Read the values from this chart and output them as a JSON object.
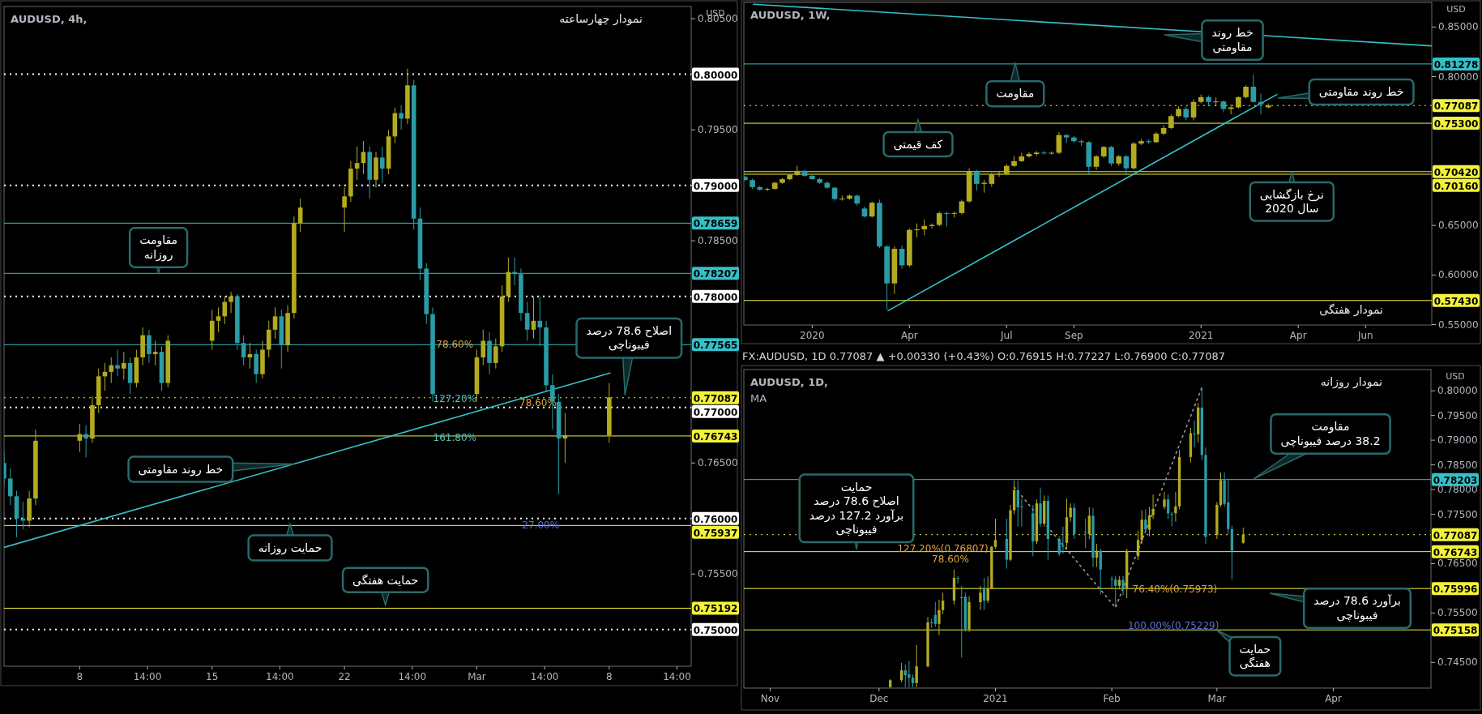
{
  "chart_data": [
    {
      "type": "candlestick",
      "title": "AUDUSD, 4h,",
      "subtitle": "نمودار چهارساعته",
      "ylabel": "USD",
      "colors": [
        "#2a9ca6",
        "#2a9ca6",
        "#2a9ca6",
        "#2a9ca6",
        "#b3ab1f",
        "#b3ab1f",
        "#b3ab1f",
        "#2a9ca6",
        "#b3ab1f",
        "#b3ab1f",
        "#b3ab1f",
        "#b3ab1f",
        "#2a9ca6",
        "#b3ab1f",
        "#2a9ca6",
        "#b3ab1f",
        "#b3ab1f",
        "#2a9ca6",
        "#b3ab1f",
        "#2a9ca6",
        "#b3ab1f",
        "#b3ab1f",
        "#b3ab1f",
        "#b3ab1f",
        "#b3ab1f",
        "#2a9ca6",
        "#2a9ca6",
        "#b3ab1f",
        "#2a9ca6",
        "#b3ab1f",
        "#b3ab1f",
        "#b3ab1f",
        "#2a9ca6",
        "#b3ab1f",
        "#b3ab1f",
        "#b3ab1f",
        "#b3ab1f",
        "#b3ab1f",
        "#b3ab1f",
        "#b3ab1f",
        "#2a9ca6",
        "#b3ab1f",
        "#2a9ca6",
        "#b3ab1f",
        "#b3ab1f",
        "#2a9ca6",
        "#b3ab1f",
        "#2a9ca6",
        "#2a9ca6",
        "#2a9ca6",
        "#2a9ca6",
        "#b3ab1f",
        "#b3ab1f",
        "#2a9ca6",
        "#b3ab1f",
        "#b3ab1f",
        "#b3ab1f",
        "#2a9ca6",
        "#2a9ca6",
        "#2a9ca6",
        "#b3ab1f",
        "#2a9ca6",
        "#2a9ca6",
        "#2a9ca6",
        "#2a9ca6",
        "#b3ab1f",
        "#b3ab1f"
      ],
      "xlim": [
        "2021-02-04T00:00",
        "2021-03-12T08:00"
      ],
      "ylim": [
        0.7467,
        0.8061
      ],
      "xticks": [
        {
          "value": "2021-02-08T00:00",
          "label": "8"
        },
        {
          "value": "2021-02-11T14:00",
          "label": "14:00"
        },
        {
          "value": "2021-02-15T00:00",
          "label": "15"
        },
        {
          "value": "2021-02-18T14:00",
          "label": "14:00"
        },
        {
          "value": "2021-02-22T00:00",
          "label": "22"
        },
        {
          "value": "2021-02-25T14:00",
          "label": "14:00"
        },
        {
          "value": "2021-03-01T00:00",
          "label": "Mar"
        },
        {
          "value": "2021-03-04T14:00",
          "label": "14:00"
        },
        {
          "value": "2021-03-08T00:00",
          "label": "8"
        },
        {
          "value": "2021-03-11T14:00",
          "label": "14:00"
        }
      ],
      "yticks": [
        {
          "value": 0.75,
          "label": "0.75000"
        },
        {
          "value": 0.755,
          "label": "0.75500"
        },
        {
          "value": 0.76,
          "label": "0.76000"
        },
        {
          "value": 0.765,
          "label": "0.76500"
        },
        {
          "value": 0.77,
          "label": "0.77000"
        },
        {
          "value": 0.78,
          "label": "0.78000"
        },
        {
          "value": 0.785,
          "label": "0.78500"
        },
        {
          "value": 0.79,
          "label": "0.79000"
        },
        {
          "value": 0.795,
          "label": "0.79500"
        },
        {
          "value": 0.8,
          "label": "0.80000"
        },
        {
          "value": 0.805,
          "label": "0.80500"
        }
      ],
      "x": [
        "2021-02-04T00:00",
        "2021-02-04T08:00",
        "2021-02-04T16:00",
        "2021-02-05T00:00",
        "2021-02-05T08:00",
        "2021-02-05T16:00",
        "2021-02-08T00:00",
        "2021-02-08T08:00",
        "2021-02-08T16:00",
        "2021-02-09T00:00",
        "2021-02-09T08:00",
        "2021-02-09T16:00",
        "2021-02-10T00:00",
        "2021-02-10T08:00",
        "2021-02-10T16:00",
        "2021-02-11T00:00",
        "2021-02-11T08:00",
        "2021-02-11T16:00",
        "2021-02-12T00:00",
        "2021-02-12T08:00",
        "2021-02-12T16:00",
        "2021-02-15T00:00",
        "2021-02-15T08:00",
        "2021-02-15T16:00",
        "2021-02-16T00:00",
        "2021-02-16T08:00",
        "2021-02-16T16:00",
        "2021-02-17T00:00",
        "2021-02-17T08:00",
        "2021-02-17T16:00",
        "2021-02-18T00:00",
        "2021-02-18T08:00",
        "2021-02-18T16:00",
        "2021-02-19T00:00",
        "2021-02-19T08:00",
        "2021-02-19T16:00",
        "2021-02-22T00:00",
        "2021-02-22T08:00",
        "2021-02-22T16:00",
        "2021-02-23T00:00",
        "2021-02-23T08:00",
        "2021-02-23T16:00",
        "2021-02-24T00:00",
        "2021-02-24T08:00",
        "2021-02-24T16:00",
        "2021-02-25T00:00",
        "2021-02-25T08:00",
        "2021-02-25T16:00",
        "2021-02-26T00:00",
        "2021-02-26T08:00",
        "2021-02-26T16:00",
        "2021-03-01T00:00",
        "2021-03-01T08:00",
        "2021-03-01T16:00",
        "2021-03-02T00:00",
        "2021-03-02T08:00",
        "2021-03-02T16:00",
        "2021-03-03T00:00",
        "2021-03-03T08:00",
        "2021-03-03T16:00",
        "2021-03-04T00:00",
        "2021-03-04T08:00",
        "2021-03-04T16:00",
        "2021-03-05T00:00",
        "2021-03-05T08:00",
        "2021-03-05T16:00",
        "2021-03-08T00:00"
      ],
      "ohlc": [
        [
          0.765,
          0.766,
          0.763,
          0.7636
        ],
        [
          0.7636,
          0.7645,
          0.7612,
          0.762
        ],
        [
          0.762,
          0.7625,
          0.7583,
          0.76
        ],
        [
          0.76,
          0.7615,
          0.759,
          0.7598
        ],
        [
          0.7598,
          0.7625,
          0.7592,
          0.7618
        ],
        [
          0.7618,
          0.768,
          0.7612,
          0.767
        ],
        [
          0.767,
          0.7685,
          0.766,
          0.7676
        ],
        [
          0.7676,
          0.7684,
          0.7655,
          0.7672
        ],
        [
          0.7672,
          0.771,
          0.7668,
          0.7702
        ],
        [
          0.7702,
          0.7735,
          0.7695,
          0.7728
        ],
        [
          0.7728,
          0.774,
          0.7715,
          0.7732
        ],
        [
          0.7732,
          0.7745,
          0.7722,
          0.7738
        ],
        [
          0.7738,
          0.7752,
          0.7728,
          0.7735
        ],
        [
          0.7735,
          0.775,
          0.7725,
          0.774
        ],
        [
          0.774,
          0.7745,
          0.7712,
          0.7722
        ],
        [
          0.7722,
          0.7752,
          0.7718,
          0.7745
        ],
        [
          0.7745,
          0.7772,
          0.7738,
          0.7765
        ],
        [
          0.7765,
          0.777,
          0.774,
          0.7748
        ],
        [
          0.7748,
          0.776,
          0.7738,
          0.775
        ],
        [
          0.775,
          0.7755,
          0.7715,
          0.7722
        ],
        [
          0.7722,
          0.7765,
          0.7718,
          0.776
        ],
        [
          0.776,
          0.7788,
          0.7752,
          0.7778
        ],
        [
          0.7778,
          0.779,
          0.7768,
          0.7782
        ],
        [
          0.7782,
          0.78,
          0.7775,
          0.7795
        ],
        [
          0.7795,
          0.7804,
          0.7785,
          0.78
        ],
        [
          0.78,
          0.7802,
          0.7752,
          0.7758
        ],
        [
          0.7758,
          0.7765,
          0.7738,
          0.7745
        ],
        [
          0.7745,
          0.7758,
          0.7735,
          0.7748
        ],
        [
          0.7748,
          0.7752,
          0.7722,
          0.773
        ],
        [
          0.773,
          0.776,
          0.7726,
          0.7752
        ],
        [
          0.7752,
          0.7778,
          0.7745,
          0.777
        ],
        [
          0.777,
          0.779,
          0.7762,
          0.7782
        ],
        [
          0.7782,
          0.7788,
          0.7735,
          0.7756
        ],
        [
          0.7756,
          0.7792,
          0.775,
          0.7785
        ],
        [
          0.7785,
          0.7872,
          0.778,
          0.7866
        ],
        [
          0.7866,
          0.7888,
          0.7858,
          0.788
        ],
        [
          0.788,
          0.7898,
          0.7858,
          0.789
        ],
        [
          0.789,
          0.7922,
          0.7885,
          0.7915
        ],
        [
          0.7915,
          0.7935,
          0.7905,
          0.792
        ],
        [
          0.792,
          0.794,
          0.791,
          0.793
        ],
        [
          0.793,
          0.7935,
          0.7888,
          0.7905
        ],
        [
          0.7905,
          0.793,
          0.7898,
          0.7925
        ],
        [
          0.7925,
          0.7935,
          0.7902,
          0.7915
        ],
        [
          0.7915,
          0.795,
          0.791,
          0.7944
        ],
        [
          0.7944,
          0.797,
          0.7938,
          0.7965
        ],
        [
          0.7965,
          0.7972,
          0.795,
          0.796
        ],
        [
          0.796,
          0.8005,
          0.7955,
          0.799
        ],
        [
          0.799,
          0.7995,
          0.786,
          0.787
        ],
        [
          0.787,
          0.788,
          0.7815,
          0.7825
        ],
        [
          0.7825,
          0.783,
          0.7775,
          0.7784
        ],
        [
          0.7784,
          0.779,
          0.7705,
          0.7712
        ],
        [
          0.7712,
          0.7752,
          0.7705,
          0.7745
        ],
        [
          0.7745,
          0.777,
          0.7738,
          0.776
        ],
        [
          0.776,
          0.7768,
          0.773,
          0.774
        ],
        [
          0.774,
          0.7762,
          0.7735,
          0.7755
        ],
        [
          0.7755,
          0.781,
          0.775,
          0.78
        ],
        [
          0.78,
          0.7835,
          0.7795,
          0.7822
        ],
        [
          0.7822,
          0.7835,
          0.781,
          0.782
        ],
        [
          0.782,
          0.7825,
          0.7778,
          0.7785
        ],
        [
          0.7785,
          0.7795,
          0.776,
          0.777
        ],
        [
          0.777,
          0.78,
          0.7762,
          0.7778
        ],
        [
          0.7778,
          0.78,
          0.7755,
          0.7772
        ],
        [
          0.7772,
          0.7778,
          0.7715,
          0.772
        ],
        [
          0.772,
          0.773,
          0.768,
          0.7705
        ],
        [
          0.7705,
          0.7712,
          0.7622,
          0.7672
        ],
        [
          0.7672,
          0.7695,
          0.765,
          0.7675
        ],
        [
          0.7675,
          0.7722,
          0.7668,
          0.7709
        ]
      ],
      "series": [
        {
          "type": "line",
          "color": "#35c0c8",
          "x": [
            "2021-02-04T00:00",
            "2021-03-08T01:00"
          ],
          "values": [
            0.7574,
            0.7731
          ]
        }
      ],
      "ref_lines": [
        {
          "axis": "y",
          "value": 0.8,
          "color": "#ffffff",
          "line_style": "dotted"
        },
        {
          "axis": "y",
          "value": 0.79,
          "color": "#ffffff",
          "line_style": "dotted"
        },
        {
          "axis": "y",
          "value": 0.78659,
          "label": "0.78659",
          "color": "#35c0c8",
          "line_style": "solid"
        },
        {
          "axis": "y",
          "value": 0.78207,
          "label": "0.78207",
          "color": "#35c0c8",
          "line_style": "solid"
        },
        {
          "axis": "y",
          "value": 0.78,
          "color": "#ffffff",
          "line_style": "dotted"
        },
        {
          "axis": "y",
          "value": 0.77565,
          "label": "0.77565",
          "color": "#35c0c8",
          "line_style": "solid"
        },
        {
          "axis": "y",
          "value": 0.77087,
          "label": "0.77087",
          "color": "#f2f23c",
          "line_style": "dotted"
        },
        {
          "axis": "y",
          "value": 0.77,
          "color": "#ffffff",
          "line_style": "dotted"
        },
        {
          "axis": "y",
          "value": 0.76743,
          "label": "0.76743",
          "color": "#f2f23c",
          "line_style": "solid"
        },
        {
          "axis": "y",
          "value": 0.76,
          "color": "#ffffff",
          "line_style": "dotted"
        },
        {
          "axis": "y",
          "value": 0.75937,
          "label": "0.75937",
          "color": "#f2f23c",
          "line_style": "solid"
        },
        {
          "axis": "y",
          "value": 0.75192,
          "label": "0.75192",
          "color": "#f2f23c",
          "line_style": "solid"
        },
        {
          "axis": "y",
          "value": 0.75,
          "color": "#ffffff",
          "line_style": "dotted"
        }
      ],
      "annotations": [
        {
          "text": "مقاومت\nروزانه",
          "x": "2021-02-12T04:00",
          "y": 0.7821
        },
        {
          "text": "خط روند مقاومتی",
          "x": "2021-02-19T08:00",
          "y": 0.7649
        },
        {
          "text": "حمایت روزانه",
          "x": "2021-02-19T03:00",
          "y": 0.7595
        },
        {
          "text": "حمایت هفتگی",
          "x": "2021-02-24T04:00",
          "y": 0.7522
        },
        {
          "text": "اصلاح 78.6 درصد\nفیبوناچی",
          "x": "2021-03-08T20:00",
          "y": 0.7711
        },
        {
          "text": "78.60%",
          "x": "2021-02-27T20:00",
          "y": 0.7757
        },
        {
          "text": "127.20%",
          "x": "2021-02-27T20:00",
          "y": 0.7708
        },
        {
          "text": "161.80%",
          "x": "2021-02-27T20:00",
          "y": 0.7673
        },
        "78.60%",
        {
          "text": "27.00%",
          "x": "2021-03-04T09:00",
          "y": 0.7594
        }
      ]
    },
    {
      "type": "candlestick",
      "title": "AUDUSD, 1W,",
      "subtitle": "نمودار هفتگی",
      "ylabel": "USD",
      "colors": [
        "#2a9ca6",
        "#2a9ca6",
        "#2a9ca6",
        "#b3ab1f",
        "#b3ab1f",
        "#b3ab1f",
        "#b3ab1f",
        "#b3ab1f",
        "#2a9ca6",
        "#2a9ca6",
        "#2a9ca6",
        "#2a9ca6",
        "#2a9ca6",
        "#b3ab1f",
        "#b3ab1f",
        "#2a9ca6",
        "#2a9ca6",
        "#b3ab1f",
        "#2a9ca6",
        "#2a9ca6",
        "#b3ab1f",
        "#2a9ca6",
        "#b3ab1f",
        "#b3ab1f",
        "#b3ab1f",
        "#b3ab1f",
        "#b3ab1f",
        "#2a9ca6",
        "#b3ab1f",
        "#b3ab1f",
        "#b3ab1f",
        "#2a9ca6",
        "#b3ab1f",
        "#b3ab1f",
        "#b3ab1f",
        "#b3ab1f",
        "#b3ab1f",
        "#b3ab1f",
        "#b3ab1f",
        "#b3ab1f",
        "#2a9ca6",
        "#b3ab1f",
        "#b3ab1f",
        "#2a9ca6",
        "#2a9ca6",
        "#2a9ca6",
        "#2a9ca6",
        "#b3ab1f",
        "#b3ab1f",
        "#2a9ca6",
        "#b3ab1f",
        "#2a9ca6",
        "#b3ab1f",
        "#b3ab1f",
        "#2a9ca6",
        "#b3ab1f",
        "#b3ab1f",
        "#b3ab1f",
        "#b3ab1f",
        "#2a9ca6",
        "#b3ab1f",
        "#b3ab1f",
        "#2a9ca6",
        "#b3ab1f",
        "#2a9ca6",
        "#b3ab1f",
        "#b3ab1f",
        "#b3ab1f",
        "#2a9ca6",
        "#2a9ca6",
        "#b3ab1f"
      ],
      "xlim": [
        "2019-11-03",
        "2021-08-08"
      ],
      "ylim": [
        0.5496,
        0.8748
      ],
      "xticks": [
        {
          "value": "2020-01-06",
          "label": "2020"
        },
        {
          "value": "2020-04-06",
          "label": "Apr"
        },
        {
          "value": "2020-07-06",
          "label": "Jul"
        },
        {
          "value": "2020-09-07",
          "label": "Sep"
        },
        {
          "value": "2021-01-04",
          "label": "2021"
        },
        {
          "value": "2021-04-05",
          "label": "Apr"
        },
        {
          "value": "2021-06-07",
          "label": "Jun"
        }
      ],
      "yticks": [
        {
          "value": 0.55,
          "label": "0.55000"
        },
        {
          "value": 0.6,
          "label": "0.60000"
        },
        {
          "value": 0.65,
          "label": "0.65000"
        },
        {
          "value": 0.8,
          "label": "0.80000"
        },
        {
          "value": 0.85,
          "label": "0.85000"
        }
      ],
      "x": [
        "2019-11-04",
        "2019-11-11",
        "2019-11-18",
        "2019-11-25",
        "2019-12-02",
        "2019-12-09",
        "2019-12-16",
        "2019-12-23",
        "2019-12-30",
        "2020-01-06",
        "2020-01-13",
        "2020-01-20",
        "2020-01-27",
        "2020-02-03",
        "2020-02-10",
        "2020-02-17",
        "2020-02-24",
        "2020-03-02",
        "2020-03-09",
        "2020-03-16",
        "2020-03-23",
        "2020-03-30",
        "2020-04-06",
        "2020-04-13",
        "2020-04-20",
        "2020-04-27",
        "2020-05-04",
        "2020-05-11",
        "2020-05-18",
        "2020-05-25",
        "2020-06-01",
        "2020-06-08",
        "2020-06-15",
        "2020-06-22",
        "2020-06-29",
        "2020-07-06",
        "2020-07-13",
        "2020-07-20",
        "2020-07-27",
        "2020-08-03",
        "2020-08-10",
        "2020-08-17",
        "2020-08-24",
        "2020-08-31",
        "2020-09-07",
        "2020-09-14",
        "2020-09-21",
        "2020-09-28",
        "2020-10-05",
        "2020-10-12",
        "2020-10-19",
        "2020-10-26",
        "2020-11-02",
        "2020-11-09",
        "2020-11-16",
        "2020-11-23",
        "2020-11-30",
        "2020-12-07",
        "2020-12-14",
        "2020-12-21",
        "2020-12-28",
        "2021-01-04",
        "2021-01-11",
        "2021-01-18",
        "2021-01-25",
        "2021-02-01",
        "2021-02-08",
        "2021-02-15",
        "2021-02-22",
        "2021-03-01",
        "2021-03-08"
      ],
      "ohlc": [
        [
          0.699,
          0.7,
          0.695,
          0.6957
        ],
        [
          0.6957,
          0.697,
          0.687,
          0.6886
        ],
        [
          0.6886,
          0.69,
          0.685,
          0.686
        ],
        [
          0.686,
          0.688,
          0.6845,
          0.6868
        ],
        [
          0.6868,
          0.694,
          0.686,
          0.693
        ],
        [
          0.693,
          0.6975,
          0.692,
          0.6966
        ],
        [
          0.6966,
          0.702,
          0.6955,
          0.701
        ],
        [
          0.701,
          0.71,
          0.7,
          0.705
        ],
        [
          0.705,
          0.706,
          0.699,
          0.7
        ],
        [
          0.7,
          0.701,
          0.696,
          0.6966
        ],
        [
          0.6966,
          0.698,
          0.692,
          0.693
        ],
        [
          0.693,
          0.6945,
          0.687,
          0.688
        ],
        [
          0.688,
          0.689,
          0.675,
          0.6766
        ],
        [
          0.6766,
          0.68,
          0.675,
          0.677
        ],
        [
          0.677,
          0.681,
          0.676,
          0.68
        ],
        [
          0.68,
          0.681,
          0.67,
          0.672
        ],
        [
          0.667,
          0.669,
          0.658,
          0.659
        ],
        [
          0.659,
          0.674,
          0.658,
          0.6728
        ],
        [
          0.6728,
          0.676,
          0.627,
          0.6288
        ],
        [
          0.6288,
          0.63,
          0.565,
          0.5915
        ],
        [
          0.5915,
          0.629,
          0.581,
          0.6264
        ],
        [
          0.6264,
          0.63,
          0.606,
          0.6097
        ],
        [
          0.6097,
          0.647,
          0.608,
          0.6455
        ],
        [
          0.6455,
          0.652,
          0.638,
          0.646
        ],
        [
          0.646,
          0.656,
          0.64,
          0.6494
        ],
        [
          0.6494,
          0.652,
          0.647,
          0.6505
        ],
        [
          0.6505,
          0.664,
          0.649,
          0.6623
        ],
        [
          0.6623,
          0.664,
          0.649,
          0.662
        ],
        [
          0.662,
          0.664,
          0.658,
          0.6625
        ],
        [
          0.6625,
          0.676,
          0.661,
          0.6742
        ],
        [
          0.6742,
          0.7075,
          0.673,
          0.7043
        ],
        [
          0.7043,
          0.706,
          0.685,
          0.6919
        ],
        [
          0.6919,
          0.696,
          0.683,
          0.693
        ],
        [
          0.6919,
          0.703,
          0.689,
          0.7014
        ],
        [
          0.7014,
          0.705,
          0.699,
          0.702
        ],
        [
          0.702,
          0.712,
          0.7005,
          0.71
        ],
        [
          0.71,
          0.72,
          0.709,
          0.7148
        ],
        [
          0.7148,
          0.723,
          0.714,
          0.7196
        ],
        [
          0.7196,
          0.724,
          0.7185,
          0.722
        ],
        [
          0.722,
          0.725,
          0.72,
          0.7234
        ],
        [
          0.7234,
          0.725,
          0.7215,
          0.723
        ],
        [
          0.723,
          0.7245,
          0.7215,
          0.7232
        ],
        [
          0.7232,
          0.744,
          0.722,
          0.7411
        ],
        [
          0.7411,
          0.742,
          0.733,
          0.7387
        ],
        [
          0.7387,
          0.74,
          0.733,
          0.7349
        ],
        [
          0.7349,
          0.737,
          0.73,
          0.7339
        ],
        [
          0.7339,
          0.735,
          0.701,
          0.7091
        ],
        [
          0.7091,
          0.721,
          0.706,
          0.7196
        ],
        [
          0.7196,
          0.73,
          0.718,
          0.7291
        ],
        [
          0.7291,
          0.73,
          0.71,
          0.7124
        ],
        [
          0.7124,
          0.721,
          0.71,
          0.7196
        ],
        [
          0.7196,
          0.721,
          0.7005,
          0.7076
        ],
        [
          0.7076,
          0.734,
          0.706,
          0.7325
        ],
        [
          0.7325,
          0.737,
          0.731,
          0.7349
        ],
        [
          0.7349,
          0.737,
          0.732,
          0.7339
        ],
        [
          0.7339,
          0.744,
          0.733,
          0.7425
        ],
        [
          0.7425,
          0.751,
          0.741,
          0.7482
        ],
        [
          0.7482,
          0.762,
          0.747,
          0.7602
        ],
        [
          0.7602,
          0.77,
          0.759,
          0.7674
        ],
        [
          0.7674,
          0.77,
          0.756,
          0.7588
        ],
        [
          0.7588,
          0.777,
          0.756,
          0.7745
        ],
        [
          0.7745,
          0.782,
          0.773,
          0.7793
        ],
        [
          0.7793,
          0.781,
          0.77,
          0.7745
        ],
        [
          0.7745,
          0.779,
          0.77,
          0.775
        ],
        [
          0.775,
          0.776,
          0.764,
          0.7674
        ],
        [
          0.7674,
          0.772,
          0.762,
          0.769
        ],
        [
          0.769,
          0.78,
          0.768,
          0.7793
        ],
        [
          0.7793,
          0.791,
          0.778,
          0.7898
        ],
        [
          0.7898,
          0.802,
          0.774,
          0.7745
        ],
        [
          0.7745,
          0.783,
          0.762,
          0.772
        ],
        [
          0.769,
          0.773,
          0.768,
          0.7709
        ]
      ],
      "series": [
        {
          "type": "line",
          "color": "#35c0c8",
          "x": [
            "2020-03-17",
            "2021-03-16"
          ],
          "values": [
            0.564,
            0.782
          ]
        },
        {
          "type": "line",
          "color": "#35c0c8",
          "x": [
            "2019-11-12",
            "2021-08-08"
          ],
          "values": [
            0.873,
            0.831
          ]
        }
      ],
      "ref_lines": [
        {
          "axis": "y",
          "value": 0.81278,
          "label": "0.81278",
          "color": "#35c0c8",
          "line_style": "solid"
        },
        {
          "axis": "y",
          "value": 0.77087,
          "label": "0.77087",
          "color": "#f2f23c",
          "line_style": "dotted"
        },
        {
          "axis": "y",
          "value": 0.753,
          "label": "0.75300",
          "color": "#f2f23c",
          "line_style": "solid"
        },
        {
          "axis": "y",
          "value": 0.7042,
          "label": "0.70420",
          "color": "#f2f23c",
          "line_style": "solid"
        },
        {
          "axis": "y",
          "value": 0.7016,
          "label": "0.70160",
          "color": "#f2f23c",
          "line_style": "solid"
        },
        {
          "axis": "y",
          "value": 0.5743,
          "label": "0.57430",
          "color": "#f2f23c",
          "line_style": "solid"
        }
      ],
      "annotations": [
        "خط روند\nمقاومتی",
        {
          "text": "مقاومت",
          "x": "2020-07-14",
          "y": 0.8142
        },
        {
          "text": "کف قیمتی",
          "x": "2020-04-14",
          "y": 0.7564
        },
        {
          "text": "خط روند مقاومتی",
          "x": "2021-03-17",
          "y": 0.7783
        },
        {
          "text": "نرخ بازگشایی\nسال 2020",
          "x": "2021-03-30",
          "y": 0.7043
        }
      ]
    },
    {
      "type": "candlestick",
      "title": "AUDUSD, 1D,",
      "subtitle": "نمودار روزانه",
      "ylabel": "USD",
      "colors": [
        "#b3ab1f",
        "#b3ab1f",
        "#2a9ca6",
        "#2a9ca6",
        "#2a9ca6",
        "#b3ab1f",
        "#b3ab1f",
        "#2a9ca6",
        "#2a9ca6",
        "#b3ab1f",
        "#b3ab1f",
        "#b3ab1f",
        "#2a9ca6",
        "#2a9ca6",
        "#2a9ca6",
        "#b3ab1f",
        "#b3ab1f",
        "#2a9ca6",
        "#b3ab1f",
        "#b3ab1f",
        "#b3ab1f",
        "#2a9ca6",
        "#b3ab1f",
        "#b3ab1f",
        "#2a9ca6",
        "#2a9ca6",
        "#2a9ca6",
        "#b3ab1f",
        "#2a9ca6",
        "#b3ab1f",
        "#2a9ca6",
        "#2a9ca6",
        "#2a9ca6",
        "#b3ab1f",
        "#b3ab1f",
        "#2a9ca6",
        "#2a9ca6",
        "#b3ab1f",
        "#2a9ca6",
        "#b3ab1f",
        "#2a9ca6",
        "#2a9ca6",
        "#2a9ca6",
        "#b3ab1f",
        "#2a9ca6",
        "#b3ab1f",
        "#b3ab1f",
        "#b3ab1f",
        "#2a9ca6",
        "#b3ab1f",
        "#b3ab1f",
        "#b3ab1f",
        "#2a9ca6",
        "#2a9ca6",
        "#b3ab1f",
        "#b3ab1f",
        "#b3ab1f",
        "#2a9ca6",
        "#b3ab1f",
        "#2a9ca6",
        "#2a9ca6",
        "#b3ab1f",
        "#b3ab1f",
        "#2a9ca6",
        "#2a9ca6",
        "#2a9ca6",
        "#b3ab1f"
      ],
      "xlim": [
        "2020-10-26",
        "2021-04-27"
      ],
      "ylim": [
        0.7398,
        0.8043
      ],
      "xticks": [
        {
          "value": "2020-11-02",
          "label": "Nov"
        },
        {
          "value": "2020-12-01",
          "label": "Dec"
        },
        {
          "value": "2021-01-01",
          "label": "2021"
        },
        {
          "value": "2021-02-01",
          "label": "Feb"
        },
        {
          "value": "2021-03-01",
          "label": "Mar"
        },
        {
          "value": "2021-04-01",
          "label": "Apr"
        }
      ],
      "yticks": [
        {
          "value": 0.745,
          "label": "0.74500"
        },
        {
          "value": 0.755,
          "label": "0.75500"
        },
        {
          "value": 0.765,
          "label": "0.76500"
        },
        {
          "value": 0.775,
          "label": "0.77500"
        },
        {
          "value": 0.78,
          "label": "0.78000"
        },
        {
          "value": 0.785,
          "label": "0.78500"
        },
        {
          "value": 0.79,
          "label": "0.79000"
        },
        {
          "value": 0.795,
          "label": "0.79500"
        },
        {
          "value": 0.8,
          "label": "0.80000"
        }
      ],
      "x": [
        "2020-12-04",
        "2020-12-07",
        "2020-12-08",
        "2020-12-09",
        "2020-12-10",
        "2020-12-11",
        "2020-12-14",
        "2020-12-15",
        "2020-12-16",
        "2020-12-17",
        "2020-12-18",
        "2020-12-21",
        "2020-12-22",
        "2020-12-23",
        "2020-12-24",
        "2020-12-25",
        "2020-12-28",
        "2020-12-29",
        "2020-12-30",
        "2020-12-31",
        "2021-01-01",
        "2021-01-04",
        "2021-01-05",
        "2021-01-06",
        "2021-01-07",
        "2021-01-08",
        "2021-01-11",
        "2021-01-12",
        "2021-01-13",
        "2021-01-14",
        "2021-01-15",
        "2021-01-18",
        "2021-01-19",
        "2021-01-20",
        "2021-01-21",
        "2021-01-22",
        "2021-01-25",
        "2021-01-26",
        "2021-01-27",
        "2021-01-28",
        "2021-01-29",
        "2021-02-01",
        "2021-02-02",
        "2021-02-03",
        "2021-02-04",
        "2021-02-05",
        "2021-02-08",
        "2021-02-09",
        "2021-02-10",
        "2021-02-11",
        "2021-02-12",
        "2021-02-15",
        "2021-02-16",
        "2021-02-17",
        "2021-02-18",
        "2021-02-19",
        "2021-02-22",
        "2021-02-23",
        "2021-02-24",
        "2021-02-25",
        "2021-02-26",
        "2021-03-01",
        "2021-03-02",
        "2021-03-03",
        "2021-03-04",
        "2021-03-05",
        "2021-03-08"
      ],
      "ohlc": [
        [
          0.74,
          0.7416,
          0.7398,
          0.7414
        ],
        [
          0.7414,
          0.7449,
          0.741,
          0.7434
        ],
        [
          0.7434,
          0.7446,
          0.74,
          0.7424
        ],
        [
          0.7426,
          0.7453,
          0.74,
          0.7419
        ],
        [
          0.7419,
          0.7425,
          0.74,
          0.7408
        ],
        [
          0.7408,
          0.7485,
          0.74,
          0.7442
        ],
        [
          0.7442,
          0.7542,
          0.744,
          0.7531
        ],
        [
          0.7531,
          0.7539,
          0.752,
          0.753
        ],
        [
          0.7546,
          0.7572,
          0.7522,
          0.7528
        ],
        [
          0.7528,
          0.7577,
          0.7505,
          0.7556
        ],
        [
          0.7556,
          0.7591,
          0.7548,
          0.7575
        ],
        [
          0.7575,
          0.7638,
          0.7567,
          0.7621
        ],
        [
          0.7621,
          0.7625,
          0.761,
          0.762
        ],
        [
          0.7582,
          0.7605,
          0.746,
          0.758
        ],
        [
          0.7583,
          0.7591,
          0.7512,
          0.7517
        ],
        [
          0.7517,
          0.7584,
          0.7512,
          0.7572
        ],
        [
          0.7572,
          0.7605,
          0.7556,
          0.7591
        ],
        [
          0.7599,
          0.7621,
          0.7556,
          0.7575
        ],
        [
          0.7575,
          0.7624,
          0.757,
          0.76
        ],
        [
          0.76,
          0.7686,
          0.7598,
          0.7684
        ],
        [
          0.7684,
          0.7741,
          0.768,
          0.7698
        ],
        [
          0.77,
          0.7741,
          0.764,
          0.7658
        ],
        [
          0.7658,
          0.7769,
          0.7655,
          0.7758
        ],
        [
          0.7758,
          0.7818,
          0.775,
          0.7799
        ],
        [
          0.7799,
          0.7818,
          0.7725,
          0.7764
        ],
        [
          0.7766,
          0.7782,
          0.7725,
          0.7764
        ],
        [
          0.7752,
          0.7769,
          0.7665,
          0.7695
        ],
        [
          0.7695,
          0.778,
          0.769,
          0.7772
        ],
        [
          0.7772,
          0.7804,
          0.7725,
          0.7731
        ],
        [
          0.7731,
          0.7788,
          0.7725,
          0.7777
        ],
        [
          0.7777,
          0.7788,
          0.7657,
          0.77
        ],
        [
          0.77,
          0.7705,
          0.7665,
          0.767
        ],
        [
          0.7686,
          0.7725,
          0.767,
          0.7684
        ],
        [
          0.7692,
          0.7782,
          0.768,
          0.7744
        ],
        [
          0.7744,
          0.7772,
          0.7735,
          0.7763
        ],
        [
          0.7763,
          0.7772,
          0.77,
          0.771
        ],
        [
          0.7714,
          0.7741,
          0.7681,
          0.7713
        ],
        [
          0.771,
          0.7764,
          0.77,
          0.7747
        ],
        [
          0.7747,
          0.7763,
          0.7643,
          0.7662
        ],
        [
          0.7662,
          0.769,
          0.7643,
          0.7676
        ],
        [
          0.7676,
          0.768,
          0.7588,
          0.7638
        ],
        [
          0.7619,
          0.7625,
          0.76,
          0.7618
        ],
        [
          0.7618,
          0.7625,
          0.7561,
          0.7605
        ],
        [
          0.7605,
          0.7625,
          0.7598,
          0.7617
        ],
        [
          0.7617,
          0.7625,
          0.7586,
          0.7599
        ],
        [
          0.7599,
          0.768,
          0.758,
          0.7676
        ],
        [
          0.7665,
          0.7717,
          0.7657,
          0.7698
        ],
        [
          0.7698,
          0.7758,
          0.769,
          0.7739
        ],
        [
          0.7739,
          0.776,
          0.7712,
          0.7719
        ],
        [
          0.7719,
          0.7765,
          0.7705,
          0.7748
        ],
        [
          0.7748,
          0.779,
          0.774,
          0.7761
        ],
        [
          0.7765,
          0.7795,
          0.776,
          0.778
        ],
        [
          0.778,
          0.779,
          0.774,
          0.7752
        ],
        [
          0.7751,
          0.7755,
          0.7725,
          0.775
        ],
        [
          0.7752,
          0.7795,
          0.7735,
          0.7766
        ],
        [
          0.7766,
          0.788,
          0.776,
          0.7866
        ],
        [
          0.7866,
          0.7925,
          0.7855,
          0.7914
        ],
        [
          0.7913,
          0.794,
          0.7885,
          0.7912
        ],
        [
          0.7912,
          0.7975,
          0.7895,
          0.7966
        ],
        [
          0.7966,
          0.8007,
          0.786,
          0.787
        ],
        [
          0.787,
          0.7885,
          0.769,
          0.7704
        ],
        [
          0.7708,
          0.7775,
          0.77,
          0.7769
        ],
        [
          0.7769,
          0.7835,
          0.7765,
          0.7819
        ],
        [
          0.7819,
          0.7835,
          0.7765,
          0.7771
        ],
        [
          0.7774,
          0.7822,
          0.771,
          0.772
        ],
        [
          0.772,
          0.7727,
          0.7618,
          0.7676
        ],
        [
          0.7692,
          0.7723,
          0.769,
          0.7709
        ]
      ],
      "series": [
        {
          "type": "line",
          "color": "#9a9a9a",
          "line_style": "dotted",
          "x": [
            "2021-01-06",
            "2021-02-02",
            "2021-02-25"
          ],
          "values": [
            0.7805,
            0.7561,
            0.8007
          ]
        }
      ],
      "ref_lines": [
        {
          "axis": "y",
          "value": 0.78203,
          "label": "0.78203",
          "color": "#35c0c8",
          "line_style": "solid"
        },
        {
          "axis": "y",
          "value": 0.77087,
          "label": "0.77087",
          "color": "#f2f23c",
          "line_style": "dotted"
        },
        {
          "axis": "y",
          "value": 0.76743,
          "label": "0.76743",
          "color": "#f2f23c",
          "line_style": "solid"
        },
        {
          "axis": "y",
          "value": 0.75996,
          "label": "0.75996",
          "color": "#f2f23c",
          "line_style": "solid"
        },
        {
          "axis": "y",
          "value": 0.75158,
          "label": "0.75158",
          "color": "#f2f23c",
          "line_style": "solid"
        }
      ],
      "annotations": [
        "FX:AUDUSD, 1D 0.77087 ▲ +0.00330 (+0.43%) O:0.76915 H:0.77227 L:0.76900 C:0.77087",
        "MA",
        {
          "text": "حمایت\nاصلاح 78.6 درصد\nبرآورد 127.2 درصد\nفیبوناچی",
          "x": "2020-11-25",
          "y": 0.7679
        },
        "مقاومت\n38.2 درصد فیبوناچی",
        "برآورد 78.6 درصد\nفیبوناچی",
        {
          "text": "حمایت\nهفتگی",
          "x": "2021-03-01",
          "y": 0.7515
        },
        {
          "text": "127.20%(0.76807)",
          "x": "2020-12-18",
          "y": 0.7681
        },
        "78.60%",
        {
          "text": "76.40%(0.75973)",
          "x": "2021-02-17T19:00",
          "y": 0.7598
        },
        {
          "text": "100.00%(0.75229)",
          "x": "2021-02-17T10:00",
          "y": 0.7524
        }
      ]
    }
  ]
}
